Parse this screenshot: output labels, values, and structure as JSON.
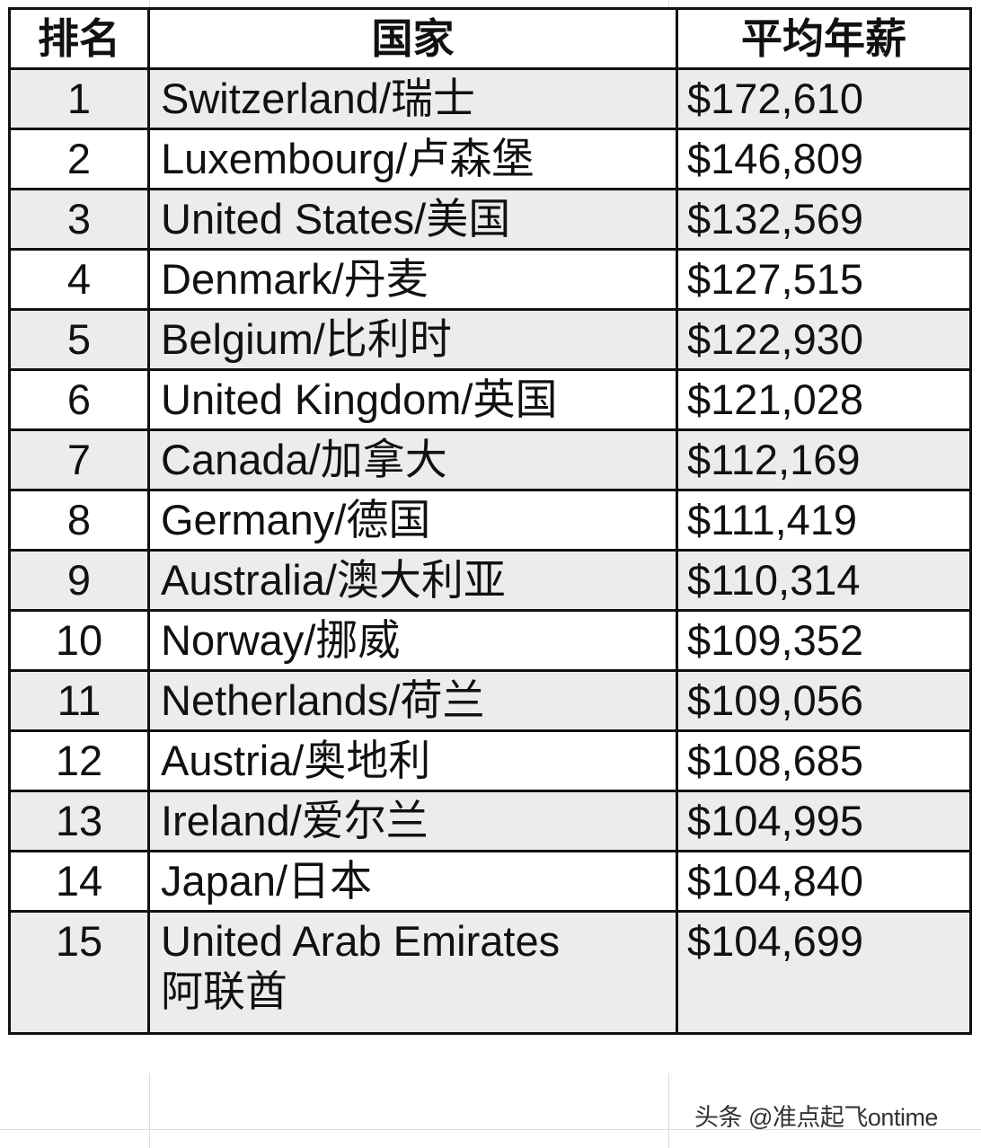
{
  "table": {
    "headers": [
      "排名",
      "国家",
      "平均年薪"
    ],
    "rows": [
      {
        "rank": "1",
        "country": "Switzerland/瑞士",
        "salary": "$172,610"
      },
      {
        "rank": "2",
        "country": "Luxembourg/卢森堡",
        "salary": "$146,809"
      },
      {
        "rank": "3",
        "country": "United States/美国",
        "salary": "$132,569"
      },
      {
        "rank": "4",
        "country": "Denmark/丹麦",
        "salary": "$127,515"
      },
      {
        "rank": "5",
        "country": "Belgium/比利时",
        "salary": "$122,930"
      },
      {
        "rank": "6",
        "country": "United Kingdom/英国",
        "salary": "$121,028"
      },
      {
        "rank": "7",
        "country": "Canada/加拿大",
        "salary": "$112,169"
      },
      {
        "rank": "8",
        "country": "Germany/德国",
        "salary": "$111,419"
      },
      {
        "rank": "9",
        "country": "Australia/澳大利亚",
        "salary": "$110,314"
      },
      {
        "rank": "10",
        "country": "Norway/挪威",
        "salary": "$109,352"
      },
      {
        "rank": "11",
        "country": "Netherlands/荷兰",
        "salary": "$109,056"
      },
      {
        "rank": "12",
        "country": "Austria/奥地利",
        "salary": "$108,685"
      },
      {
        "rank": "13",
        "country": "Ireland/爱尔兰",
        "salary": "$104,995"
      },
      {
        "rank": "14",
        "country": "Japan/日本",
        "salary": "$104,840"
      }
    ],
    "last_row": {
      "rank": "15",
      "country_line1": "United Arab Emirates",
      "country_line2": "阿联酋",
      "salary": "$104,699"
    },
    "stripe_color": "#ececec"
  },
  "watermark": "头条 @准点起飞ontime"
}
